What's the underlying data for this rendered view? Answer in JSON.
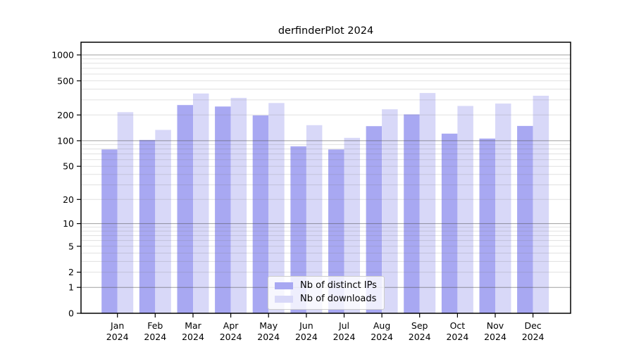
{
  "chart_data": {
    "type": "bar",
    "title": "derfinderPlot 2024",
    "year": "2024",
    "categories": [
      "Jan",
      "Feb",
      "Mar",
      "Apr",
      "May",
      "Jun",
      "Jul",
      "Aug",
      "Sep",
      "Oct",
      "Nov",
      "Dec"
    ],
    "series": [
      {
        "name": "Nb of distinct IPs",
        "color": "#a8a8f2",
        "values": [
          79,
          102,
          261,
          251,
          198,
          86,
          79,
          148,
          203,
          121,
          106,
          149
        ]
      },
      {
        "name": "Nb of downloads",
        "color": "#d8d8f8",
        "values": [
          216,
          134,
          356,
          317,
          276,
          152,
          108,
          233,
          361,
          255,
          272,
          335
        ]
      }
    ],
    "y_ticks": [
      0,
      1,
      2,
      5,
      10,
      20,
      50,
      100,
      200,
      500,
      1000
    ],
    "ylim": [
      0,
      1400
    ],
    "yscale": "log10(1+x)",
    "xlabel": "",
    "ylabel": "",
    "grid": "on",
    "legend_position": "inside-bottom-center",
    "colors": {
      "major_gridline": "#b3b3b3",
      "minor_gridline": "#e8e8e8",
      "axis": "#000000",
      "background": "#ffffff"
    }
  }
}
